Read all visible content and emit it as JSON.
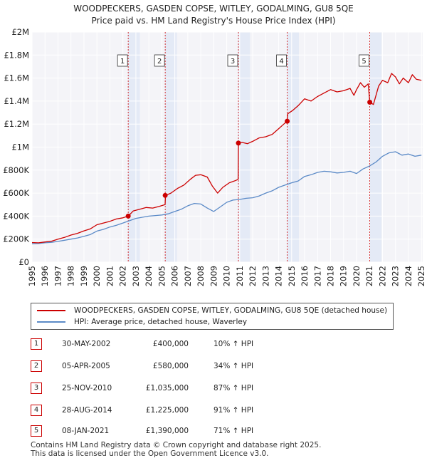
{
  "chart_data": {
    "type": "line",
    "title": "WOODPECKERS, GASDEN COPSE, WITLEY, GODALMING, GU8 5QE",
    "subtitle": "Price paid vs. HM Land Registry's House Price Index (HPI)",
    "xlabel": "",
    "ylabel": "",
    "xlim": [
      1995,
      2025.1
    ],
    "ylim": [
      0,
      2000000
    ],
    "x_ticks": [
      "1995",
      "1996",
      "1997",
      "1998",
      "1999",
      "2000",
      "2001",
      "2002",
      "2003",
      "2004",
      "2005",
      "2006",
      "2007",
      "2008",
      "2009",
      "2010",
      "2011",
      "2012",
      "2013",
      "2014",
      "2015",
      "2016",
      "2017",
      "2018",
      "2019",
      "2020",
      "2021",
      "2022",
      "2023",
      "2024",
      "2025"
    ],
    "y_ticks": [
      {
        "value": 0,
        "label": "£0"
      },
      {
        "value": 200000,
        "label": "£200K"
      },
      {
        "value": 400000,
        "label": "£400K"
      },
      {
        "value": 600000,
        "label": "£600K"
      },
      {
        "value": 800000,
        "label": "£800K"
      },
      {
        "value": 1000000,
        "label": "£1M"
      },
      {
        "value": 1200000,
        "label": "£1.2M"
      },
      {
        "value": 1400000,
        "label": "£1.4M"
      },
      {
        "value": 1600000,
        "label": "£1.6M"
      },
      {
        "value": 1800000,
        "label": "£1.8M"
      },
      {
        "value": 2000000,
        "label": "£2M"
      }
    ],
    "grid": true,
    "series": [
      {
        "name": "WOODPECKERS, GASDEN COPSE, WITLEY, GODALMING, GU8 5QE (detached house)",
        "color": "#cc0000",
        "x": [
          1995.0,
          1995.5,
          1996.0,
          1996.5,
          1997.0,
          1997.5,
          1998.0,
          1998.5,
          1999.0,
          1999.5,
          2000.0,
          2000.5,
          2001.0,
          2001.5,
          2002.0,
          2002.41,
          2002.8,
          2003.3,
          2003.8,
          2004.3,
          2004.8,
          2005.25,
          2005.28,
          2005.7,
          2006.2,
          2006.7,
          2007.2,
          2007.6,
          2008.0,
          2008.5,
          2008.9,
          2009.3,
          2009.7,
          2010.2,
          2010.7,
          2010.88,
          2010.9,
          2011.2,
          2011.6,
          2012.0,
          2012.5,
          2013.0,
          2013.5,
          2014.0,
          2014.4,
          2014.65,
          2014.7,
          2015.1,
          2015.5,
          2016.0,
          2016.5,
          2017.0,
          2017.5,
          2018.0,
          2018.5,
          2019.0,
          2019.5,
          2019.8,
          2020.0,
          2020.3,
          2020.6,
          2020.9,
          2021.02,
          2021.3,
          2021.7,
          2022.0,
          2022.4,
          2022.7,
          2023.0,
          2023.3,
          2023.6,
          2024.0,
          2024.3,
          2024.6,
          2025.0
        ],
        "values": [
          170000,
          168000,
          175000,
          182000,
          200000,
          215000,
          235000,
          250000,
          272000,
          290000,
          325000,
          340000,
          355000,
          375000,
          385000,
          400000,
          445000,
          460000,
          475000,
          470000,
          485000,
          500000,
          580000,
          600000,
          640000,
          670000,
          720000,
          755000,
          760000,
          740000,
          660000,
          600000,
          650000,
          690000,
          710000,
          720000,
          1035000,
          1040000,
          1030000,
          1050000,
          1080000,
          1090000,
          1110000,
          1160000,
          1200000,
          1225000,
          1290000,
          1320000,
          1360000,
          1420000,
          1400000,
          1440000,
          1470000,
          1500000,
          1480000,
          1490000,
          1510000,
          1450000,
          1500000,
          1560000,
          1520000,
          1550000,
          1390000,
          1370000,
          1530000,
          1580000,
          1560000,
          1640000,
          1610000,
          1550000,
          1600000,
          1560000,
          1630000,
          1590000,
          1580000
        ]
      },
      {
        "name": "HPI: Average price, detached house, Waverley",
        "color": "#5b8ac7",
        "x": [
          1995.0,
          1995.5,
          1996.0,
          1996.5,
          1997.0,
          1997.5,
          1998.0,
          1998.5,
          1999.0,
          1999.5,
          2000.0,
          2000.5,
          2001.0,
          2001.5,
          2002.0,
          2002.5,
          2003.0,
          2003.5,
          2004.0,
          2004.5,
          2005.0,
          2005.5,
          2006.0,
          2006.5,
          2007.0,
          2007.5,
          2008.0,
          2008.5,
          2009.0,
          2009.5,
          2010.0,
          2010.5,
          2011.0,
          2011.5,
          2012.0,
          2012.5,
          2013.0,
          2013.5,
          2014.0,
          2014.5,
          2015.0,
          2015.5,
          2016.0,
          2016.5,
          2017.0,
          2017.5,
          2018.0,
          2018.5,
          2019.0,
          2019.5,
          2020.0,
          2020.5,
          2021.0,
          2021.5,
          2022.0,
          2022.5,
          2023.0,
          2023.5,
          2024.0,
          2024.5,
          2025.0
        ],
        "values": [
          160000,
          162000,
          168000,
          172000,
          180000,
          190000,
          200000,
          210000,
          225000,
          240000,
          270000,
          285000,
          305000,
          320000,
          340000,
          360000,
          380000,
          390000,
          400000,
          405000,
          410000,
          420000,
          440000,
          460000,
          490000,
          510000,
          505000,
          470000,
          440000,
          480000,
          520000,
          540000,
          545000,
          555000,
          560000,
          575000,
          600000,
          620000,
          650000,
          670000,
          690000,
          705000,
          745000,
          760000,
          780000,
          790000,
          785000,
          775000,
          780000,
          790000,
          770000,
          810000,
          835000,
          870000,
          920000,
          950000,
          960000,
          930000,
          940000,
          920000,
          930000
        ]
      }
    ],
    "markers": [
      {
        "label": "1",
        "x": 2002.41,
        "y": 400000
      },
      {
        "label": "2",
        "x": 2005.26,
        "y": 580000
      },
      {
        "label": "3",
        "x": 2010.9,
        "y": 1035000
      },
      {
        "label": "4",
        "x": 2014.66,
        "y": 1225000
      },
      {
        "label": "5",
        "x": 2021.02,
        "y": 1390000
      }
    ]
  },
  "legend": {
    "property": "WOODPECKERS, GASDEN COPSE, WITLEY, GODALMING, GU8 5QE (detached house)",
    "hpi": "HPI: Average price, detached house, Waverley",
    "property_color": "#cc0000",
    "hpi_color": "#5b8ac7"
  },
  "sales": [
    {
      "num": "1",
      "date": "30-MAY-2002",
      "price": "£400,000",
      "hpi": "10% ↑ HPI"
    },
    {
      "num": "2",
      "date": "05-APR-2005",
      "price": "£580,000",
      "hpi": "34% ↑ HPI"
    },
    {
      "num": "3",
      "date": "25-NOV-2010",
      "price": "£1,035,000",
      "hpi": "87% ↑ HPI"
    },
    {
      "num": "4",
      "date": "28-AUG-2014",
      "price": "£1,225,000",
      "hpi": "91% ↑ HPI"
    },
    {
      "num": "5",
      "date": "08-JAN-2021",
      "price": "£1,390,000",
      "hpi": "71% ↑ HPI"
    }
  ],
  "footer": {
    "line1": "Contains HM Land Registry data © Crown copyright and database right 2025.",
    "line2": "This data is licensed under the Open Government Licence v3.0."
  }
}
